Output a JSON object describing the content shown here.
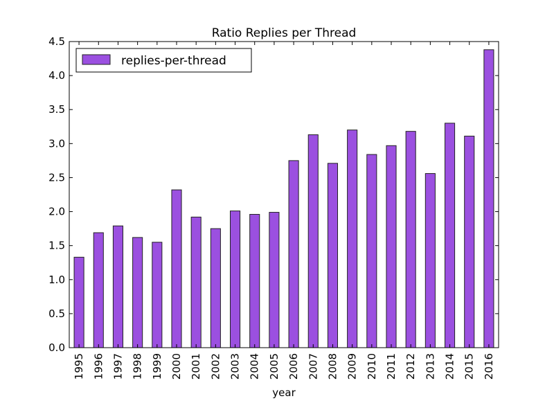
{
  "chart_data": {
    "type": "bar",
    "title": "Ratio Replies per Thread",
    "xlabel": "year",
    "ylabel": "",
    "ylim": [
      0,
      4.5
    ],
    "yticks": [
      "0.0",
      "0.5",
      "1.0",
      "1.5",
      "2.0",
      "2.5",
      "3.0",
      "3.5",
      "4.0",
      "4.5"
    ],
    "legend_placement": "top-left",
    "grid": false,
    "bar_color": "#9b50e0",
    "edge_color": "#222222",
    "categories": [
      "1995",
      "1996",
      "1997",
      "1998",
      "1999",
      "2000",
      "2001",
      "2002",
      "2003",
      "2004",
      "2005",
      "2006",
      "2007",
      "2008",
      "2009",
      "2010",
      "2011",
      "2012",
      "2013",
      "2014",
      "2015",
      "2016"
    ],
    "series": [
      {
        "name": "replies-per-thread",
        "values": [
          1.33,
          1.69,
          1.79,
          1.62,
          1.55,
          2.32,
          1.92,
          1.75,
          2.01,
          1.96,
          1.99,
          2.75,
          3.13,
          2.71,
          3.2,
          2.84,
          2.97,
          3.18,
          2.56,
          3.3,
          3.11,
          4.38
        ]
      }
    ]
  }
}
